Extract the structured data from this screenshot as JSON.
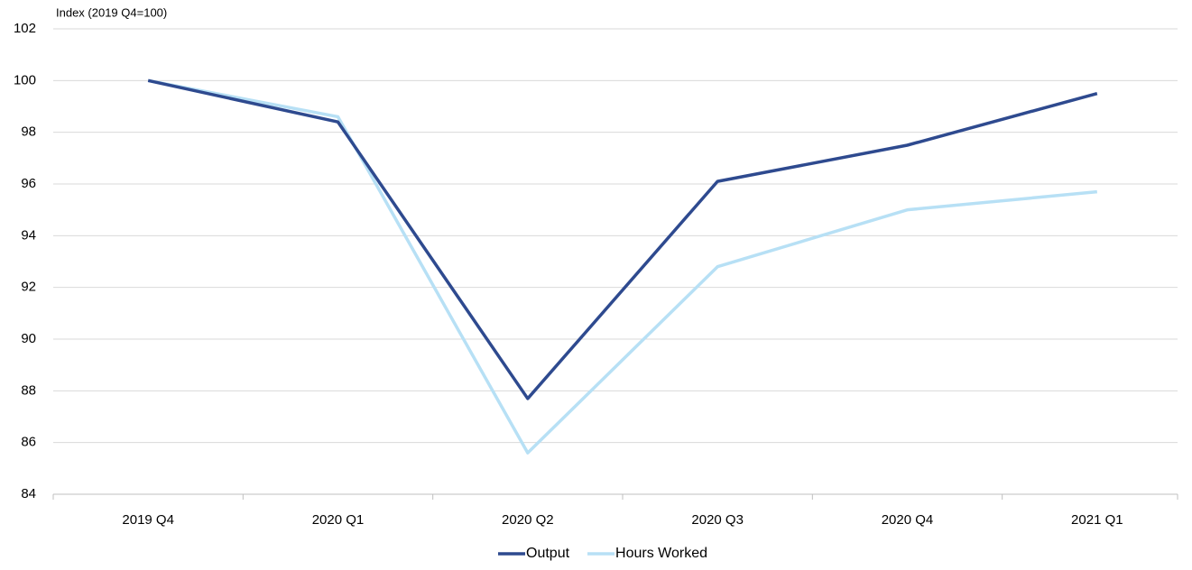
{
  "chart_data": {
    "type": "line",
    "y_axis_label": "Index (2019 Q4=100)",
    "categories": [
      "2019 Q4",
      "2020 Q1",
      "2020 Q2",
      "2020 Q3",
      "2020 Q4",
      "2021 Q1"
    ],
    "series": [
      {
        "name": "Output",
        "color": "#2e4a8f",
        "values": [
          100,
          98.4,
          87.7,
          96.1,
          97.5,
          99.5
        ]
      },
      {
        "name": "Hours Worked",
        "color": "#b7e0f5",
        "values": [
          100,
          98.6,
          85.6,
          92.8,
          95.0,
          95.7
        ]
      }
    ],
    "ylim": [
      84,
      102
    ],
    "yticks": [
      84,
      86,
      88,
      90,
      92,
      94,
      96,
      98,
      100,
      102
    ],
    "grid": true,
    "legend": "bottom"
  }
}
